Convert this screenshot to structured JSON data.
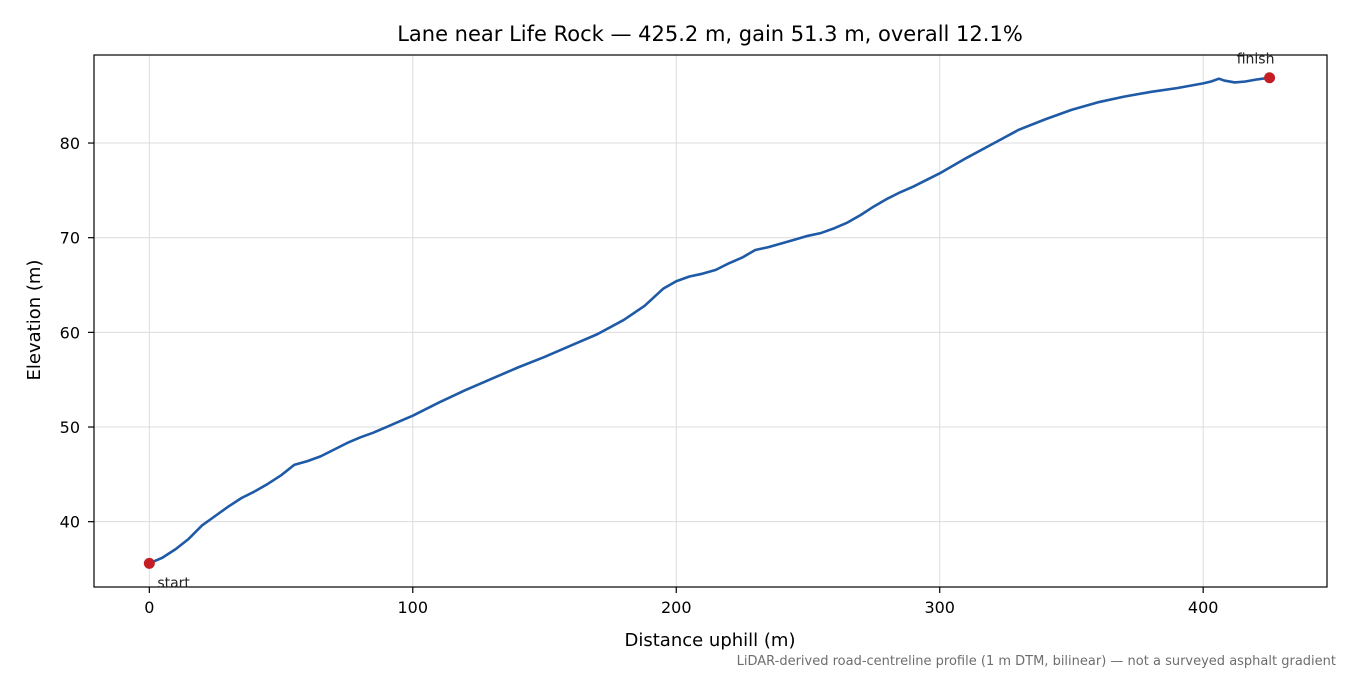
{
  "chart_data": {
    "type": "line",
    "title": "Lane near Life Rock — 425.2 m, gain 51.3 m, overall 12.1%",
    "xlabel": "Distance uphill (m)",
    "ylabel": "Elevation (m)",
    "xlim": [
      -21,
      447
    ],
    "ylim": [
      33.1,
      89.3
    ],
    "xticks": [
      0,
      100,
      200,
      300,
      400
    ],
    "yticks": [
      40,
      50,
      60,
      70,
      80
    ],
    "grid": true,
    "line_color": "#1f5aa6",
    "marker_color": "#c41e24",
    "series": [
      {
        "x": [
          0,
          5,
          10,
          15,
          20,
          25,
          30,
          35,
          40,
          45,
          50,
          55,
          60,
          65,
          70,
          75,
          80,
          85,
          90,
          95,
          100,
          110,
          120,
          130,
          140,
          150,
          160,
          170,
          180,
          188,
          195,
          200,
          205,
          210,
          215,
          220,
          225,
          230,
          235,
          240,
          245,
          250,
          255,
          260,
          265,
          270,
          275,
          280,
          285,
          290,
          300,
          310,
          320,
          330,
          340,
          350,
          360,
          370,
          380,
          390,
          400,
          403,
          406,
          408,
          412,
          416,
          420,
          425.2
        ],
        "y": [
          35.6,
          36.2,
          37.1,
          38.2,
          39.6,
          40.6,
          41.6,
          42.5,
          43.2,
          44.0,
          44.9,
          46.0,
          46.4,
          46.9,
          47.6,
          48.3,
          48.9,
          49.4,
          50.0,
          50.6,
          51.2,
          52.6,
          53.9,
          55.1,
          56.3,
          57.4,
          58.6,
          59.8,
          61.3,
          62.8,
          64.6,
          65.4,
          65.9,
          66.2,
          66.6,
          67.3,
          67.9,
          68.7,
          69.0,
          69.4,
          69.8,
          70.2,
          70.5,
          71.0,
          71.6,
          72.4,
          73.3,
          74.1,
          74.8,
          75.4,
          76.8,
          78.4,
          79.9,
          81.4,
          82.5,
          83.5,
          84.3,
          84.9,
          85.4,
          85.8,
          86.3,
          86.5,
          86.8,
          86.6,
          86.4,
          86.5,
          86.7,
          86.9
        ]
      }
    ],
    "annotations": [
      {
        "text": "start",
        "x": 0,
        "y": 35.6
      },
      {
        "text": "finish",
        "x": 425.2,
        "y": 86.9
      }
    ],
    "footnote": "LiDAR-derived road-centreline profile (1 m DTM, bilinear) — not a surveyed asphalt gradient"
  }
}
